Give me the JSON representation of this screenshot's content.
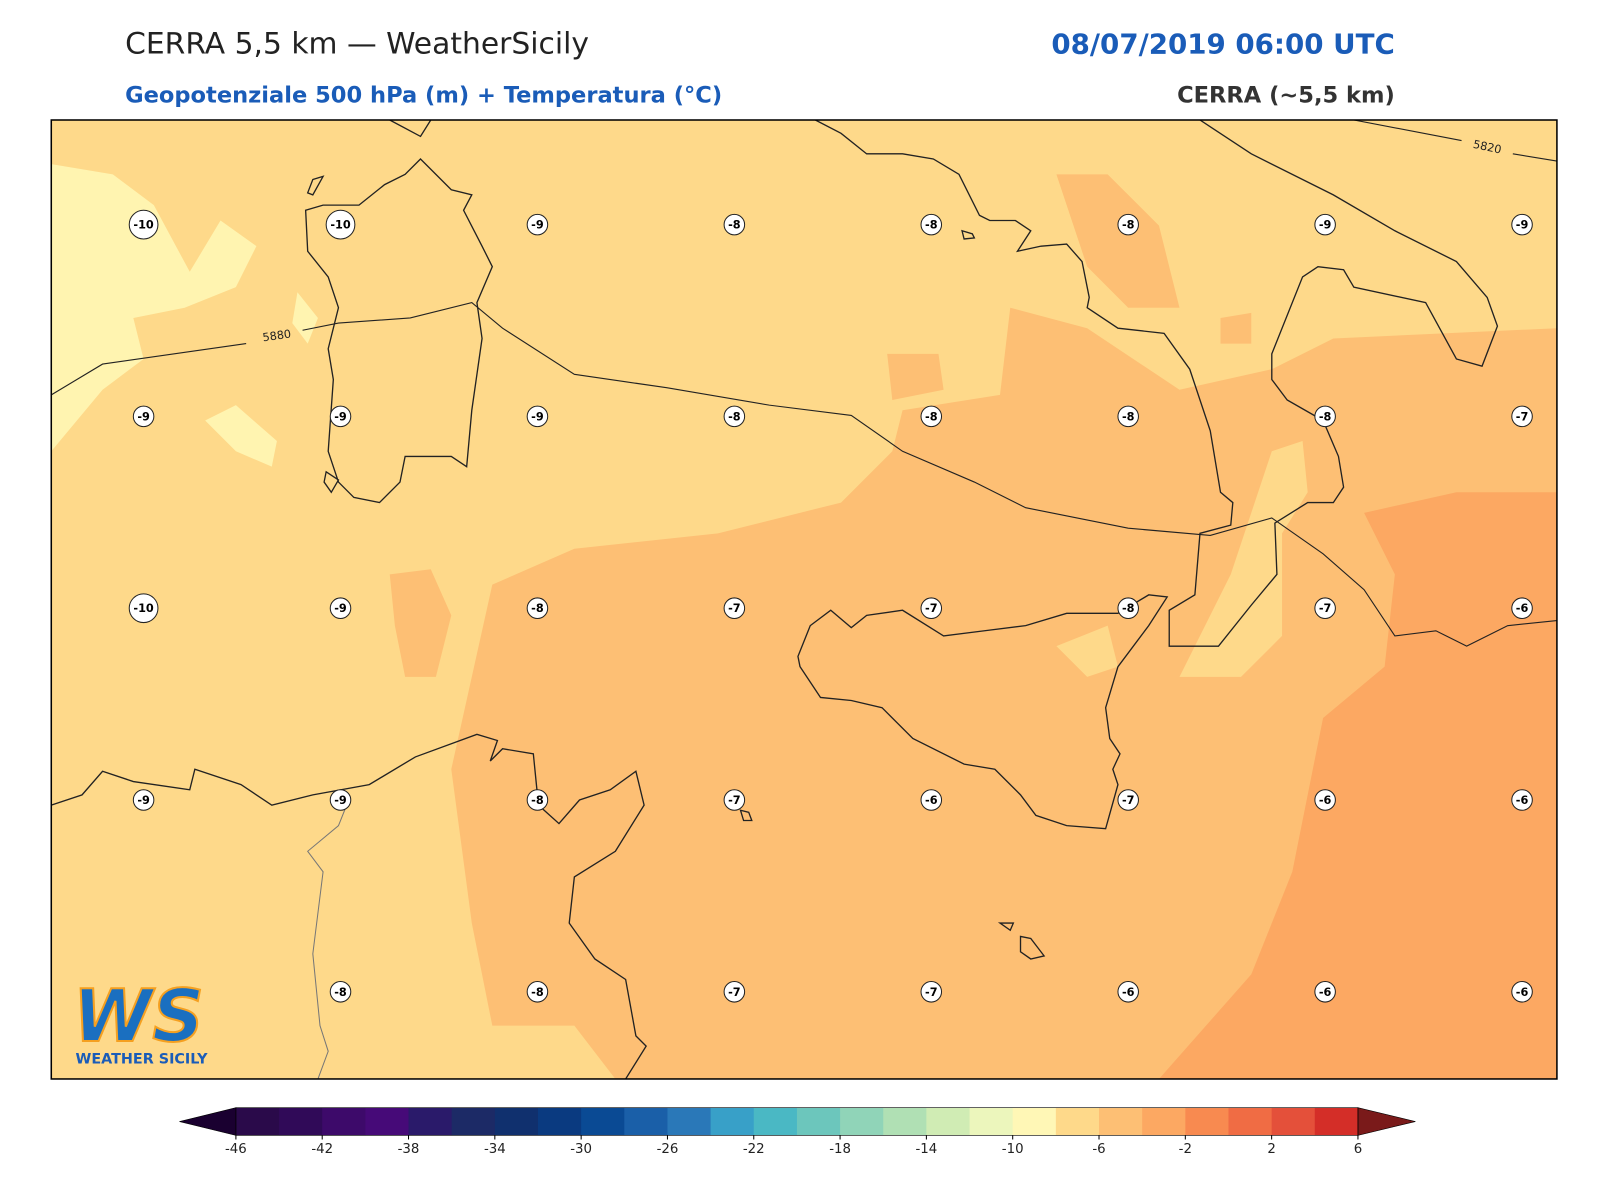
{
  "header": {
    "title": "CERRA 5,5 km — WeatherSicily",
    "datetime": "08/07/2019 06:00 UTC",
    "subtitle": "Geopotenziale 500 hPa (m) + Temperatura (°C)",
    "source": "CERRA (~5,5 km)"
  },
  "map": {
    "contours": [
      {
        "label": 5880
      },
      {
        "label": 5820
      }
    ],
    "stations": {
      "rows": [
        [
          -10,
          -10,
          -9,
          -8,
          -8,
          -8,
          -9,
          -9
        ],
        [
          -9,
          -9,
          -9,
          -8,
          -8,
          -8,
          -8,
          -7
        ],
        [
          -10,
          -9,
          -8,
          -7,
          -7,
          -8,
          -7,
          -6
        ],
        [
          -9,
          -9,
          -8,
          -7,
          -6,
          -7,
          -6,
          -6
        ],
        [
          null,
          -8,
          -8,
          -7,
          -7,
          -6,
          -6,
          -6
        ]
      ]
    }
  },
  "colorbar": {
    "ticks": [
      -46,
      -42,
      -38,
      -34,
      -30,
      -26,
      -22,
      -18,
      -14,
      -10,
      -6,
      -2,
      2,
      6
    ],
    "colors": [
      "#2a0a4a",
      "#300a58",
      "#3d0a6a",
      "#460a78",
      "#2a1a6a",
      "#1c2a66",
      "#10306e",
      "#0a3a80",
      "#0a4a94",
      "#1a5fa8",
      "#2a78b8",
      "#38a0c8",
      "#4ab8c4",
      "#6cc6bc",
      "#90d4b8",
      "#b0e0b4",
      "#d0ecb4",
      "#ecf6bc",
      "#fff7b6",
      "#fed98a",
      "#fdbf74",
      "#fca862",
      "#f88a50",
      "#f06c44",
      "#e4503a",
      "#d42e28"
    ],
    "extend_colors": [
      "#1a0030",
      "#7a1a1a"
    ]
  },
  "logo": {
    "mark": "WS",
    "name": "WEATHER SICILY"
  }
}
